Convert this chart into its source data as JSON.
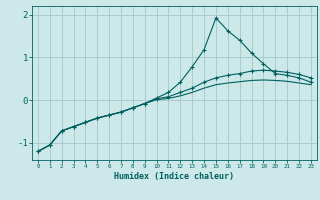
{
  "xlabel": "Humidex (Indice chaleur)",
  "bg_color": "#cce8e8",
  "line_color": "#006060",
  "grid_color": "#aacccc",
  "xlim": [
    -0.5,
    23.5
  ],
  "ylim": [
    -1.4,
    2.2
  ],
  "yticks": [
    -1,
    0,
    1,
    2
  ],
  "xticks": [
    0,
    1,
    2,
    3,
    4,
    5,
    6,
    7,
    8,
    9,
    10,
    11,
    12,
    13,
    14,
    15,
    16,
    17,
    18,
    19,
    20,
    21,
    22,
    23
  ],
  "line1_x": [
    0,
    1,
    2,
    3,
    4,
    5,
    6,
    7,
    8,
    9,
    10,
    11,
    12,
    13,
    14,
    15,
    16,
    17,
    18,
    19,
    20,
    21,
    22,
    23
  ],
  "line1_y": [
    -1.2,
    -1.05,
    -0.72,
    -0.62,
    -0.52,
    -0.42,
    -0.35,
    -0.28,
    -0.18,
    -0.08,
    0.05,
    0.18,
    0.42,
    0.78,
    1.18,
    1.92,
    1.62,
    1.4,
    1.1,
    0.85,
    0.62,
    0.58,
    0.52,
    0.42
  ],
  "line2_x": [
    0,
    1,
    2,
    3,
    4,
    5,
    6,
    7,
    8,
    9,
    10,
    11,
    12,
    13,
    14,
    15,
    16,
    17,
    18,
    19,
    20,
    21,
    22,
    23
  ],
  "line2_y": [
    -1.2,
    -1.05,
    -0.72,
    -0.62,
    -0.52,
    -0.42,
    -0.35,
    -0.28,
    -0.18,
    -0.08,
    0.03,
    0.08,
    0.18,
    0.28,
    0.42,
    0.52,
    0.58,
    0.62,
    0.68,
    0.7,
    0.68,
    0.65,
    0.6,
    0.52
  ],
  "line3_x": [
    0,
    1,
    2,
    3,
    4,
    5,
    6,
    7,
    8,
    9,
    10,
    11,
    12,
    13,
    14,
    15,
    16,
    17,
    18,
    19,
    20,
    21,
    22,
    23
  ],
  "line3_y": [
    -1.2,
    -1.05,
    -0.72,
    -0.62,
    -0.52,
    -0.42,
    -0.35,
    -0.28,
    -0.18,
    -0.08,
    0.01,
    0.04,
    0.1,
    0.18,
    0.28,
    0.36,
    0.4,
    0.43,
    0.46,
    0.47,
    0.46,
    0.44,
    0.4,
    0.36
  ]
}
